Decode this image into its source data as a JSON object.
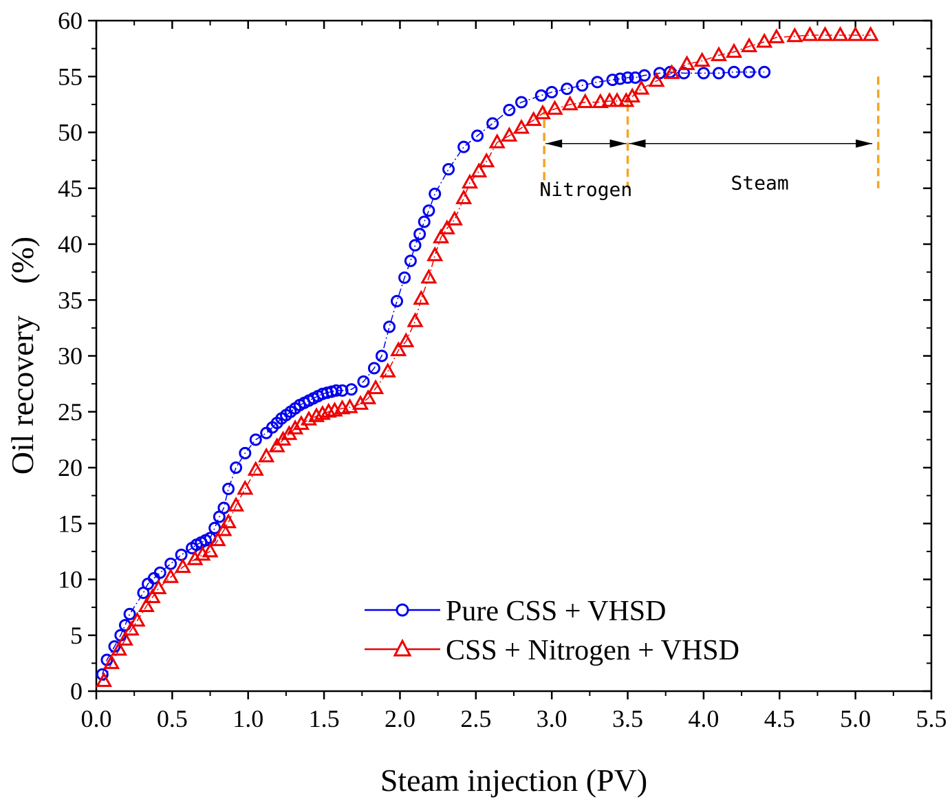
{
  "chart_data": {
    "type": "scatter",
    "xlabel": "Steam injection (PV)",
    "ylabel": "Oil recovery　(%)",
    "xlim": [
      0,
      5.5
    ],
    "ylim": [
      0,
      60
    ],
    "xticks": [
      0.0,
      0.5,
      1.0,
      1.5,
      2.0,
      2.5,
      3.0,
      3.5,
      4.0,
      4.5,
      5.0,
      5.5
    ],
    "xtick_labels": [
      "0.0",
      "0.5",
      "1.0",
      "1.5",
      "2.0",
      "2.5",
      "3.0",
      "3.5",
      "4.0",
      "4.5",
      "5.0",
      "5.5"
    ],
    "yticks": [
      0,
      5,
      10,
      15,
      20,
      25,
      30,
      35,
      40,
      45,
      50,
      55,
      60
    ],
    "ytick_labels": [
      "0",
      "5",
      "10",
      "15",
      "20",
      "25",
      "30",
      "35",
      "40",
      "45",
      "50",
      "55",
      "60"
    ],
    "legend_position": "bottom-right",
    "series": [
      {
        "name": "Pure CSS + VHSD",
        "color": "#0000ee",
        "marker": "circle",
        "x": [
          0.04,
          0.07,
          0.12,
          0.16,
          0.19,
          0.22,
          0.31,
          0.34,
          0.38,
          0.42,
          0.49,
          0.56,
          0.63,
          0.66,
          0.69,
          0.72,
          0.75,
          0.78,
          0.81,
          0.84,
          0.87,
          0.92,
          0.98,
          1.05,
          1.12,
          1.16,
          1.19,
          1.22,
          1.25,
          1.28,
          1.31,
          1.34,
          1.37,
          1.4,
          1.43,
          1.46,
          1.49,
          1.52,
          1.55,
          1.58,
          1.62,
          1.68,
          1.76,
          1.83,
          1.88,
          1.93,
          1.98,
          2.03,
          2.07,
          2.1,
          2.13,
          2.16,
          2.19,
          2.23,
          2.32,
          2.42,
          2.51,
          2.61,
          2.72,
          2.8,
          2.93,
          3.0,
          3.1,
          3.2,
          3.3,
          3.4,
          3.45,
          3.5,
          3.55,
          3.61,
          3.71,
          3.78,
          3.87,
          4.0,
          4.1,
          4.2,
          4.3,
          4.4
        ],
        "y": [
          1.5,
          2.8,
          4.0,
          5.0,
          5.9,
          6.9,
          8.8,
          9.6,
          10.1,
          10.6,
          11.4,
          12.2,
          12.8,
          13.1,
          13.3,
          13.5,
          13.7,
          14.6,
          15.6,
          16.4,
          18.1,
          20.0,
          21.3,
          22.5,
          23.1,
          23.6,
          24.0,
          24.4,
          24.7,
          25.0,
          25.3,
          25.6,
          25.8,
          26.0,
          26.2,
          26.4,
          26.6,
          26.7,
          26.8,
          26.9,
          26.9,
          27.0,
          27.7,
          28.9,
          30.0,
          32.6,
          34.9,
          37.0,
          38.5,
          39.9,
          40.9,
          42.0,
          43.0,
          44.5,
          46.7,
          48.7,
          49.7,
          50.8,
          52.0,
          52.7,
          53.3,
          53.6,
          53.9,
          54.2,
          54.5,
          54.7,
          54.8,
          54.9,
          54.9,
          55.1,
          55.3,
          55.4,
          55.3,
          55.3,
          55.3,
          55.4,
          55.4,
          55.4
        ]
      },
      {
        "name": "CSS + Nitrogen + VHSD",
        "color": "#ee0000",
        "marker": "triangle",
        "x": [
          0.05,
          0.1,
          0.15,
          0.19,
          0.23,
          0.27,
          0.33,
          0.37,
          0.41,
          0.49,
          0.57,
          0.65,
          0.7,
          0.75,
          0.8,
          0.84,
          0.87,
          0.92,
          0.98,
          1.05,
          1.12,
          1.19,
          1.23,
          1.27,
          1.31,
          1.35,
          1.4,
          1.45,
          1.49,
          1.53,
          1.57,
          1.62,
          1.67,
          1.74,
          1.79,
          1.84,
          1.92,
          1.99,
          2.04,
          2.1,
          2.14,
          2.19,
          2.23,
          2.27,
          2.31,
          2.36,
          2.42,
          2.46,
          2.52,
          2.57,
          2.64,
          2.72,
          2.8,
          2.88,
          2.94,
          3.02,
          3.12,
          3.22,
          3.32,
          3.38,
          3.43,
          3.49,
          3.53,
          3.59,
          3.69,
          3.79,
          3.89,
          3.99,
          4.1,
          4.2,
          4.3,
          4.4,
          4.48,
          4.6,
          4.7,
          4.8,
          4.9,
          5.0,
          5.1
        ],
        "y": [
          0.9,
          2.5,
          3.7,
          4.6,
          5.5,
          6.3,
          7.6,
          8.4,
          9.2,
          10.2,
          11.1,
          11.8,
          12.2,
          12.5,
          13.5,
          14.4,
          15.1,
          16.6,
          18.1,
          19.8,
          21.0,
          21.9,
          22.5,
          23.0,
          23.5,
          23.9,
          24.3,
          24.6,
          24.8,
          25.0,
          25.1,
          25.3,
          25.4,
          25.7,
          26.2,
          27.1,
          28.6,
          30.5,
          31.3,
          33.1,
          35.1,
          37.0,
          39.0,
          40.6,
          41.4,
          42.2,
          44.1,
          45.5,
          46.5,
          47.4,
          49.1,
          49.7,
          50.4,
          51.1,
          51.7,
          52.1,
          52.5,
          52.7,
          52.7,
          52.8,
          52.8,
          52.8,
          53.2,
          53.9,
          54.6,
          55.3,
          56.1,
          56.4,
          56.9,
          57.2,
          57.7,
          58.1,
          58.5,
          58.6,
          58.7,
          58.7,
          58.7,
          58.7,
          58.7
        ]
      }
    ],
    "annotations": {
      "nitrogen_label": "Nitrogen",
      "steam_label": "Steam",
      "nitrogen_range": [
        2.95,
        3.5
      ],
      "steam_range": [
        3.5,
        5.15
      ],
      "line_color": "#f5a623",
      "arrow_y": 49.0,
      "label_y": 44.3,
      "marker_line_bottom": 45.0
    }
  }
}
